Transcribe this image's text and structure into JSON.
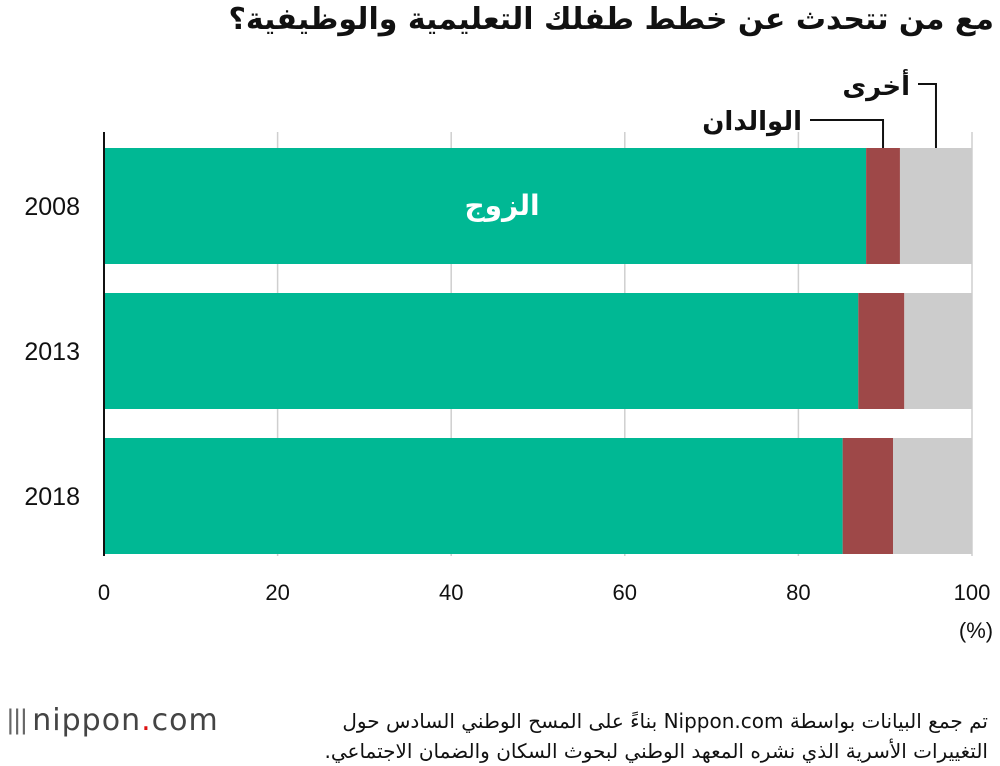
{
  "title": "مع من تتحدث عن خطط طفلك التعليمية والوظيفية؟",
  "colors": {
    "spouse": "#00b894",
    "parents": "#9e4848",
    "other": "#cccccc",
    "grid": "#cfcfcf"
  },
  "chart_data": {
    "type": "bar",
    "orientation": "horizontal",
    "stacked": true,
    "categories": [
      "2008",
      "2013",
      "2018"
    ],
    "series": [
      {
        "name": "الزوج",
        "values": [
          87.8,
          86.9,
          85.1
        ]
      },
      {
        "name": "الوالدان",
        "values": [
          3.9,
          5.3,
          5.8
        ]
      },
      {
        "name": "أخرى",
        "values": [
          8.3,
          7.8,
          9.1
        ]
      }
    ],
    "xlim": [
      0,
      100
    ],
    "xticks": [
      "0",
      "20",
      "40",
      "60",
      "80",
      "100"
    ],
    "xunit": "(%)",
    "grid": true
  },
  "footnote": {
    "line1": "تم جمع البيانات بواسطة Nippon.com بناءً على المسح الوطني السادس حول",
    "line2": "التغييرات الأسرية الذي نشره المعهد الوطني لبحوث السكان والضمان الاجتماعي."
  },
  "logo": {
    "text": "nippon",
    "dot": ".",
    "suffix": "com"
  }
}
